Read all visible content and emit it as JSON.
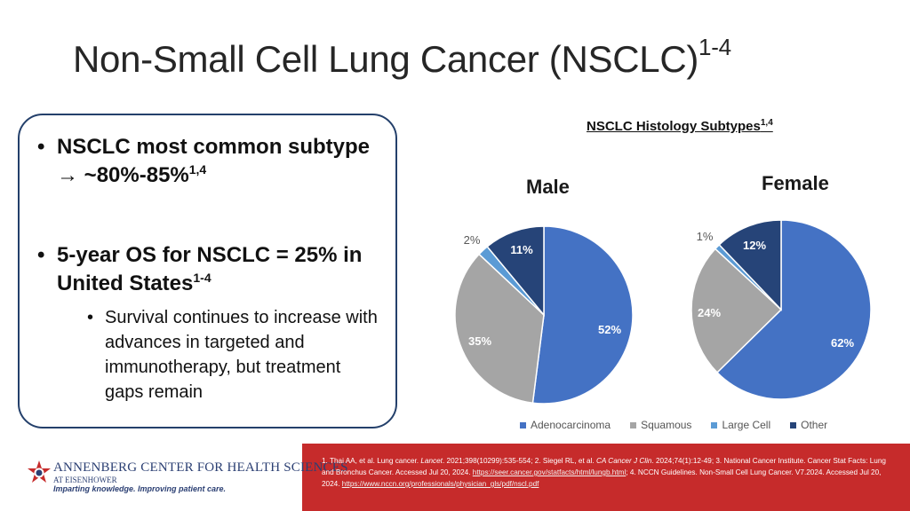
{
  "slide": {
    "title": "Non-Small Cell Lung Cancer (NSCLC)",
    "title_sup": "1-4"
  },
  "bullets": {
    "b1_text": "NSCLC most common subtype",
    "b1_arrow": "→",
    "b1_value": "~80%-85%",
    "b1_sup": "1,4",
    "b2_text": "5-year OS for NSCLC = 25% in United States",
    "b2_sup": "1-4",
    "b2_sub": "Survival continues to increase with advances in targeted and immunotherapy, but treatment gaps remain"
  },
  "chart_data": [
    {
      "type": "pie",
      "title": "NSCLC Histology Subtypes",
      "title_sup": "1,4",
      "label": "Male",
      "slices": [
        {
          "name": "Adenocarcinoma",
          "value": 52,
          "label": "52%"
        },
        {
          "name": "Squamous",
          "value": 35,
          "label": "35%"
        },
        {
          "name": "Large Cell",
          "value": 2,
          "label": "2%"
        },
        {
          "name": "Other",
          "value": 11,
          "label": "11%"
        }
      ]
    },
    {
      "type": "pie",
      "label": "Female",
      "slices": [
        {
          "name": "Adenocarcinoma",
          "value": 62,
          "label": "62%"
        },
        {
          "name": "Squamous",
          "value": 24,
          "label": "24%"
        },
        {
          "name": "Large Cell",
          "value": 1,
          "label": "1%"
        },
        {
          "name": "Other",
          "value": 12,
          "label": "12%"
        }
      ]
    }
  ],
  "legend": [
    {
      "name": "Adenocarcinoma",
      "color": "#4472c4"
    },
    {
      "name": "Squamous",
      "color": "#a5a5a5"
    },
    {
      "name": "Large Cell",
      "color": "#5b9bd5"
    },
    {
      "name": "Other",
      "color": "#264478"
    }
  ],
  "footer": {
    "org_name": "ANNENBERG CENTER FOR HEALTH SCIENCES",
    "org_sub": "AT EISENHOWER",
    "tagline": "Imparting knowledge. Improving patient care.",
    "ref1": "1. Thai AA, et al. Lung cancer. ",
    "ref1_journal": "Lancet",
    "ref1_rest": ". 2021;398(10299):535-554; 2. Siegel RL, et al. ",
    "ref2_journal": "CA Cancer J Clin",
    "ref2_rest": ". 2024;74(1):12-49; 3.  National Cancer Institute. Cancer Stat Facts: Lung and Bronchus Cancer. Accessed Jul 20, 2024. ",
    "ref3_url": "https://seer.cancer.gov/statfacts/html/lungb.html",
    "ref4": "; 4. NCCN Guidelines. Non-Small Cell Lung Cancer. V7.2024. Accessed Jul 20, 2024. ",
    "ref4_url": "https://www.nccn.org/professionals/physician_gls/pdf/nscl.pdf"
  }
}
